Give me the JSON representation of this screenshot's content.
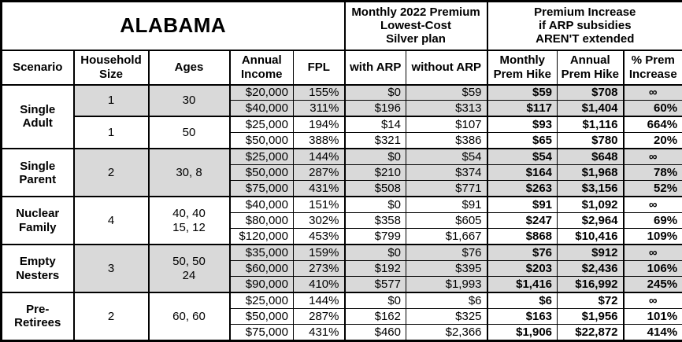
{
  "colors": {
    "shaded_row": "#d9d9d9",
    "border": "#000000",
    "background": "#ffffff"
  },
  "chart_data": {
    "type": "table",
    "title": "ALABAMA",
    "column_group_headers": [
      {
        "label": "Monthly 2022 Premium\nLowest-Cost\nSilver plan",
        "colspan": 2
      },
      {
        "label": "Premium Increase\nif ARP subsidies\nAREN'T extended",
        "colspan": 3
      }
    ],
    "columns": [
      "Scenario",
      "Household\nSize",
      "Ages",
      "Annual\nIncome",
      "FPL",
      "with ARP",
      "without ARP",
      "Monthly\nPrem Hike",
      "Annual\nPrem Hike",
      "% Prem\nIncrease"
    ],
    "value_columns": [
      "Annual Income",
      "FPL",
      "with ARP",
      "without ARP",
      "Monthly Prem Hike",
      "Annual Prem Hike",
      "% Prem Increase"
    ],
    "groups": [
      {
        "scenario": "Single\nAdult",
        "subgroups": [
          {
            "household_size": "1",
            "ages": "30",
            "shaded": true,
            "rows": [
              [
                "$20,000",
                "155%",
                "$0",
                "$59",
                "$59",
                "$708",
                "∞"
              ],
              [
                "$40,000",
                "311%",
                "$196",
                "$313",
                "$117",
                "$1,404",
                "60%"
              ]
            ]
          },
          {
            "household_size": "1",
            "ages": "50",
            "shaded": false,
            "rows": [
              [
                "$25,000",
                "194%",
                "$14",
                "$107",
                "$93",
                "$1,116",
                "664%"
              ],
              [
                "$50,000",
                "388%",
                "$321",
                "$386",
                "$65",
                "$780",
                "20%"
              ]
            ]
          }
        ]
      },
      {
        "scenario": "Single\nParent",
        "subgroups": [
          {
            "household_size": "2",
            "ages": "30, 8",
            "shaded": true,
            "rows": [
              [
                "$25,000",
                "144%",
                "$0",
                "$54",
                "$54",
                "$648",
                "∞"
              ],
              [
                "$50,000",
                "287%",
                "$210",
                "$374",
                "$164",
                "$1,968",
                "78%"
              ],
              [
                "$75,000",
                "431%",
                "$508",
                "$771",
                "$263",
                "$3,156",
                "52%"
              ]
            ]
          }
        ]
      },
      {
        "scenario": "Nuclear\nFamily",
        "subgroups": [
          {
            "household_size": "4",
            "ages": "40, 40\n15, 12",
            "shaded": false,
            "rows": [
              [
                "$40,000",
                "151%",
                "$0",
                "$91",
                "$91",
                "$1,092",
                "∞"
              ],
              [
                "$80,000",
                "302%",
                "$358",
                "$605",
                "$247",
                "$2,964",
                "69%"
              ],
              [
                "$120,000",
                "453%",
                "$799",
                "$1,667",
                "$868",
                "$10,416",
                "109%"
              ]
            ]
          }
        ]
      },
      {
        "scenario": "Empty\nNesters",
        "subgroups": [
          {
            "household_size": "3",
            "ages": "50, 50\n24",
            "shaded": true,
            "rows": [
              [
                "$35,000",
                "159%",
                "$0",
                "$76",
                "$76",
                "$912",
                "∞"
              ],
              [
                "$60,000",
                "273%",
                "$192",
                "$395",
                "$203",
                "$2,436",
                "106%"
              ],
              [
                "$90,000",
                "410%",
                "$577",
                "$1,993",
                "$1,416",
                "$16,992",
                "245%"
              ]
            ]
          }
        ]
      },
      {
        "scenario": "Pre-\nRetirees",
        "subgroups": [
          {
            "household_size": "2",
            "ages": "60, 60",
            "shaded": false,
            "rows": [
              [
                "$25,000",
                "144%",
                "$0",
                "$6",
                "$6",
                "$72",
                "∞"
              ],
              [
                "$50,000",
                "287%",
                "$162",
                "$325",
                "$163",
                "$1,956",
                "101%"
              ],
              [
                "$75,000",
                "431%",
                "$460",
                "$2,366",
                "$1,906",
                "$22,872",
                "414%"
              ]
            ]
          }
        ]
      }
    ]
  }
}
